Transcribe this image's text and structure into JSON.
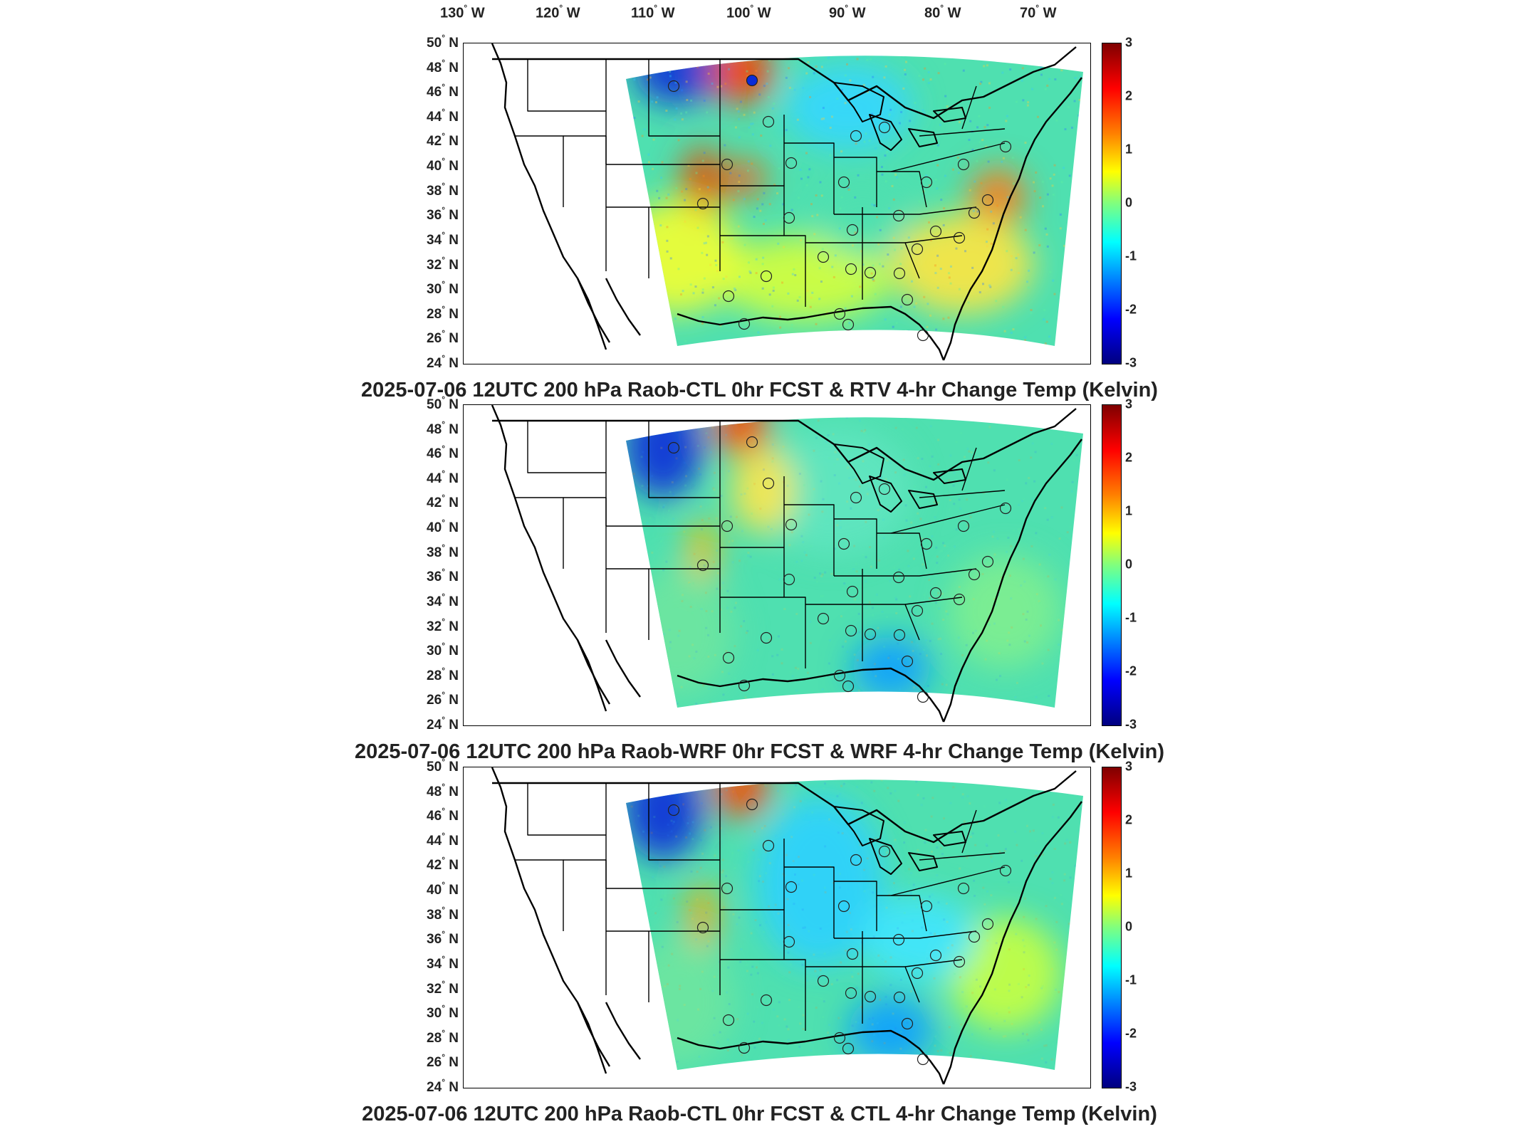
{
  "longitude_labels": [
    "130",
    "120",
    "110",
    "100",
    "90",
    "80",
    "70"
  ],
  "longitude_hemisphere": "W",
  "latitude_labels": [
    "50",
    "48",
    "46",
    "44",
    "42",
    "40",
    "38",
    "36",
    "34",
    "32",
    "30",
    "28",
    "26",
    "24"
  ],
  "latitude_hemisphere": "N",
  "degree_symbol": "°",
  "colorbar": {
    "ticks": [
      "3",
      "2",
      "1",
      "0",
      "-1",
      "-2",
      "-3"
    ],
    "range": [
      -3,
      3
    ],
    "colormap": "jet"
  },
  "panels": [
    {
      "title": "2025-07-06 12UTC 200 hPa Raob-CTL 0hr FCST & RTV 4-hr Change Temp (Kelvin)"
    },
    {
      "title": "2025-07-06 12UTC 200 hPa Raob-WRF 0hr FCST & WRF 4-hr Change Temp (Kelvin)"
    },
    {
      "title": "2025-07-06 12UTC 200 hPa Raob-CTL 0hr FCST & CTL 4-hr Change Temp (Kelvin)"
    }
  ],
  "colors": {
    "field_base": "#4fe0b0",
    "warm": "#ff3b00",
    "cold": "#0a2bd9",
    "station_outline": "#222222"
  }
}
